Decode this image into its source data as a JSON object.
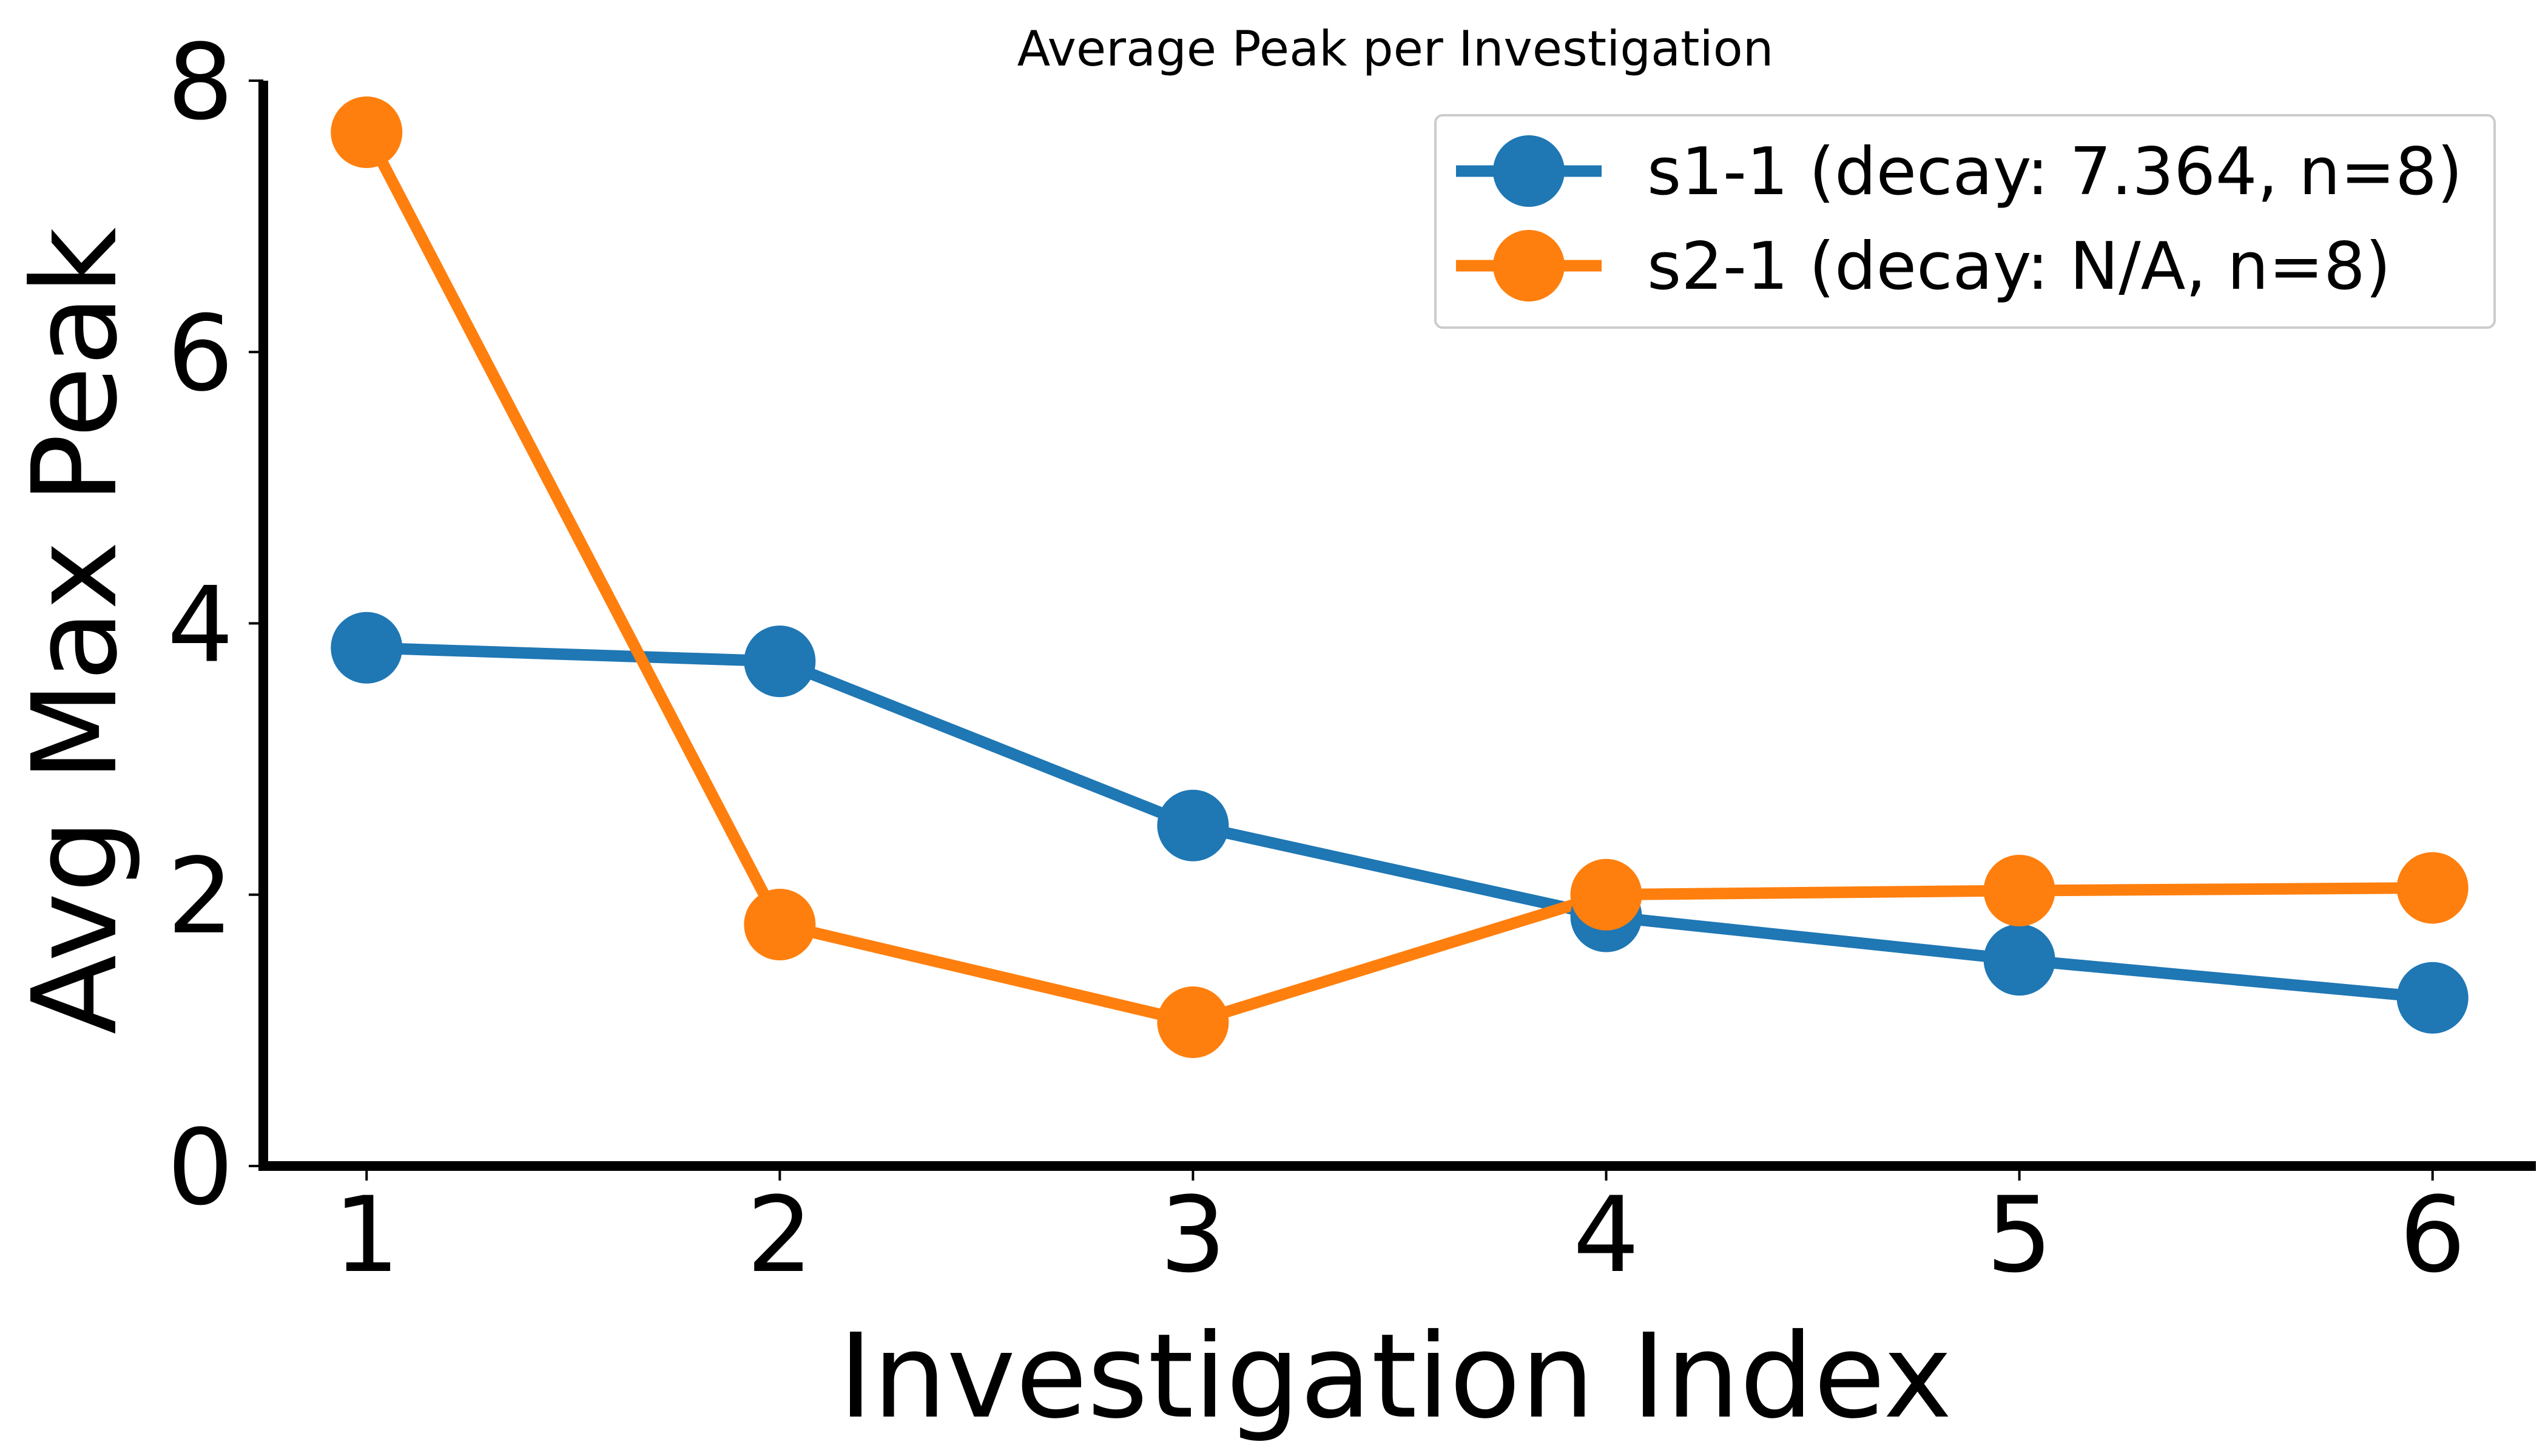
{
  "chart_data": {
    "type": "line",
    "title": "Average Peak per Investigation",
    "xlabel": "Investigation Index",
    "ylabel": "Avg Max Peak",
    "x": [
      1,
      2,
      3,
      4,
      5,
      6
    ],
    "xlim": [
      0.75,
      6.25
    ],
    "ylim": [
      0,
      8
    ],
    "x_ticks": [
      "1",
      "2",
      "3",
      "4",
      "5",
      "6"
    ],
    "y_ticks": [
      "0",
      "2",
      "4",
      "6",
      "8"
    ],
    "grid": false,
    "legend_position": "top-right",
    "series": [
      {
        "name": "s1-1 (decay: 7.364, n=8)",
        "color": "#1f77b4",
        "marker": "circle",
        "values": [
          3.82,
          3.72,
          2.51,
          1.84,
          1.52,
          1.24
        ]
      },
      {
        "name": "s2-1 (decay: N/A, n=8)",
        "color": "#ff7f0e",
        "marker": "circle",
        "values": [
          7.62,
          1.78,
          1.06,
          2.0,
          2.03,
          2.05
        ]
      }
    ]
  }
}
